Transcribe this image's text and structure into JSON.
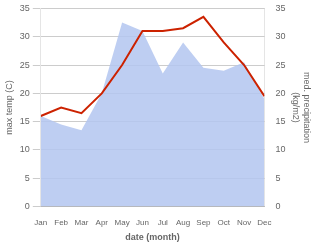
{
  "chart_data": {
    "type": "line",
    "categories": [
      "Jan",
      "Feb",
      "Mar",
      "Apr",
      "May",
      "Jun",
      "Jul",
      "Aug",
      "Sep",
      "Oct",
      "Nov",
      "Dec"
    ],
    "series": [
      {
        "type": "area",
        "axis": "y2",
        "color": "#b3c6f0",
        "values": [
          16.0,
          14.5,
          13.5,
          20.0,
          32.5,
          31.0,
          23.5,
          29.0,
          24.5,
          24.0,
          25.5,
          19.0
        ]
      },
      {
        "type": "line",
        "axis": "y",
        "color": "#cc2200",
        "values": [
          16.0,
          17.5,
          16.5,
          20.0,
          25.0,
          31.0,
          31.0,
          31.5,
          33.5,
          29.0,
          25.0,
          19.5
        ]
      }
    ],
    "xlabel": "date (month)",
    "ylabel": "max temp (C)",
    "y2label": "med. precipitation\n(kg/m2)",
    "ylim": [
      0,
      35
    ],
    "yticks": [
      0,
      5,
      10,
      15,
      20,
      25,
      30,
      35
    ],
    "y2lim": [
      0,
      35
    ],
    "y2ticks": [
      0,
      5,
      10,
      15,
      20,
      25,
      30,
      35
    ],
    "grid": true
  }
}
